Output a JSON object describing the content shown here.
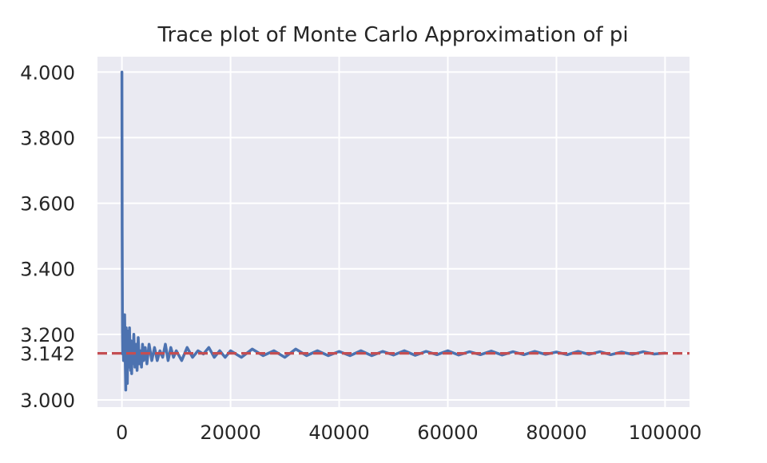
{
  "chart_data": {
    "type": "line",
    "title": "Trace plot of Monte Carlo Approximation of pi",
    "xlabel": "",
    "ylabel": "",
    "xlim": [
      -4500,
      104500
    ],
    "ylim": [
      2.978,
      4.047
    ],
    "x_ticks": [
      0,
      20000,
      40000,
      60000,
      80000,
      100000
    ],
    "x_tick_labels": [
      "0",
      "20000",
      "40000",
      "60000",
      "80000",
      "100000"
    ],
    "y_ticks": [
      3.0,
      3.142,
      3.2,
      3.4,
      3.6,
      3.8,
      4.0
    ],
    "y_tick_labels": [
      "3.000",
      "3.142",
      "3.200",
      "3.400",
      "3.600",
      "3.800",
      "4.000"
    ],
    "grid": true,
    "reference_line": {
      "y": 3.142,
      "style": "dashed",
      "color": "#c44e52"
    },
    "series": [
      {
        "color": "#4c72b0",
        "x": [
          0,
          50,
          100,
          150,
          200,
          300,
          400,
          500,
          600,
          700,
          800,
          900,
          1000,
          1100,
          1200,
          1300,
          1400,
          1500,
          1600,
          1700,
          1800,
          1900,
          2000,
          2200,
          2400,
          2600,
          2800,
          3000,
          3200,
          3400,
          3600,
          3800,
          4000,
          4300,
          4600,
          5000,
          5500,
          6000,
          6500,
          7000,
          7500,
          8000,
          8500,
          9000,
          9500,
          10000,
          11000,
          12000,
          13000,
          14000,
          15000,
          16000,
          17000,
          18000,
          19000,
          20000,
          22000,
          24000,
          26000,
          28000,
          30000,
          32000,
          34000,
          36000,
          38000,
          40000,
          42000,
          44000,
          46000,
          48000,
          50000,
          52000,
          54000,
          56000,
          58000,
          60000,
          62000,
          64000,
          66000,
          68000,
          70000,
          72000,
          74000,
          76000,
          78000,
          80000,
          82000,
          84000,
          86000,
          88000,
          90000,
          92000,
          94000,
          96000,
          98000,
          100000
        ],
        "y": [
          4.0,
          3.52,
          3.21,
          3.14,
          3.18,
          3.12,
          3.2,
          3.26,
          3.13,
          3.03,
          3.22,
          3.16,
          3.05,
          3.21,
          3.13,
          3.1,
          3.22,
          3.12,
          3.09,
          3.18,
          3.08,
          3.16,
          3.11,
          3.2,
          3.1,
          3.17,
          3.09,
          3.19,
          3.11,
          3.15,
          3.1,
          3.17,
          3.12,
          3.16,
          3.11,
          3.17,
          3.12,
          3.16,
          3.12,
          3.15,
          3.13,
          3.17,
          3.12,
          3.16,
          3.13,
          3.15,
          3.12,
          3.16,
          3.13,
          3.15,
          3.14,
          3.16,
          3.13,
          3.15,
          3.13,
          3.15,
          3.13,
          3.155,
          3.135,
          3.15,
          3.13,
          3.155,
          3.135,
          3.15,
          3.135,
          3.148,
          3.135,
          3.15,
          3.135,
          3.148,
          3.137,
          3.15,
          3.136,
          3.148,
          3.138,
          3.15,
          3.137,
          3.147,
          3.138,
          3.149,
          3.137,
          3.147,
          3.138,
          3.148,
          3.139,
          3.146,
          3.138,
          3.148,
          3.139,
          3.147,
          3.138,
          3.146,
          3.139,
          3.147,
          3.14,
          3.143
        ]
      }
    ]
  }
}
